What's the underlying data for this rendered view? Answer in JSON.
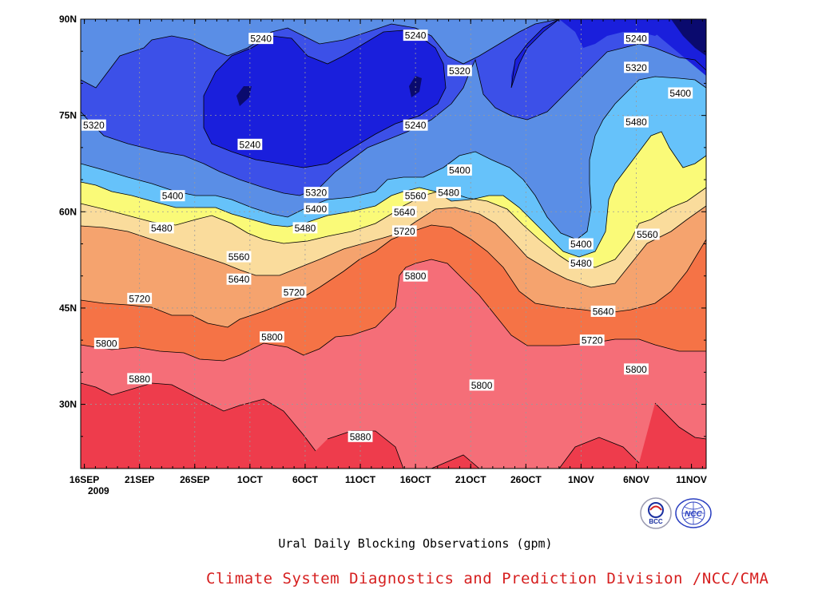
{
  "chart_data": {
    "type": "contour",
    "title": "Ural Daily Blocking Observations (gpm)",
    "variable_unit": "gpm",
    "x_tick_labels": [
      "16SEP",
      "21SEP",
      "26SEP",
      "1OCT",
      "6OCT",
      "11OCT",
      "16OCT",
      "21OCT",
      "26OCT",
      "1NOV",
      "6NOV",
      "11NOV"
    ],
    "x_year_label": "2009",
    "y_tick_labels": [
      "30N",
      "45N",
      "60N",
      "75N",
      "90N"
    ],
    "xlim": [
      "2009-09-16",
      "2009-11-11"
    ],
    "ylim": [
      20,
      90
    ],
    "grid": true,
    "contour_levels": [
      5240,
      5320,
      5400,
      5480,
      5560,
      5640,
      5720,
      5800,
      5880
    ],
    "fill_colors": [
      "#0a0a6e",
      "#1a1fdc",
      "#3c50e8",
      "#5a8ee6",
      "#66c2fa",
      "#fafa78",
      "#fadc9c",
      "#f5a36e",
      "#f57346",
      "#f56e78",
      "#ee3c4c"
    ],
    "contour_labels": [
      {
        "date": "2009-10-02",
        "lat": 87,
        "value": 5240
      },
      {
        "date": "2009-10-16",
        "lat": 87.5,
        "value": 5240
      },
      {
        "date": "2009-11-05",
        "lat": 87,
        "value": 5240
      },
      {
        "date": "2009-10-20",
        "lat": 82,
        "value": 5320
      },
      {
        "date": "2009-11-05",
        "lat": 82.5,
        "value": 5320
      },
      {
        "date": "2009-11-09",
        "lat": 78.5,
        "value": 5400
      },
      {
        "date": "2009-09-16",
        "lat": 73.5,
        "value": 5320
      },
      {
        "date": "2009-10-16",
        "lat": 73.5,
        "value": 5240
      },
      {
        "date": "2009-10-01",
        "lat": 70.5,
        "value": 5240
      },
      {
        "date": "2009-11-05",
        "lat": 74,
        "value": 5480
      },
      {
        "date": "2009-10-20",
        "lat": 66.5,
        "value": 5400
      },
      {
        "date": "2009-09-24",
        "lat": 62.5,
        "value": 5400
      },
      {
        "date": "2009-10-07",
        "lat": 63,
        "value": 5320
      },
      {
        "date": "2009-10-16",
        "lat": 62.5,
        "value": 5560
      },
      {
        "date": "2009-10-19",
        "lat": 63,
        "value": 5480
      },
      {
        "date": "2009-10-07",
        "lat": 60.5,
        "value": 5400
      },
      {
        "date": "2009-10-15",
        "lat": 60,
        "value": 5640
      },
      {
        "date": "2009-09-23",
        "lat": 57.5,
        "value": 5480
      },
      {
        "date": "2009-10-06",
        "lat": 57.5,
        "value": 5480
      },
      {
        "date": "2009-10-15",
        "lat": 57,
        "value": 5720
      },
      {
        "date": "2009-10-31",
        "lat": 55,
        "value": 5400
      },
      {
        "date": "2009-11-06",
        "lat": 56.5,
        "value": 5560
      },
      {
        "date": "2009-10-31",
        "lat": 52,
        "value": 5480
      },
      {
        "date": "2009-09-30",
        "lat": 53,
        "value": 5560
      },
      {
        "date": "2009-10-16",
        "lat": 50,
        "value": 5800
      },
      {
        "date": "2009-09-30",
        "lat": 49.5,
        "value": 5640
      },
      {
        "date": "2009-10-05",
        "lat": 47.5,
        "value": 5720
      },
      {
        "date": "2009-09-21",
        "lat": 46.5,
        "value": 5720
      },
      {
        "date": "2009-11-02",
        "lat": 44.5,
        "value": 5640
      },
      {
        "date": "2009-10-03",
        "lat": 40.5,
        "value": 5800
      },
      {
        "date": "2009-09-18",
        "lat": 39.5,
        "value": 5800
      },
      {
        "date": "2009-11-01",
        "lat": 40,
        "value": 5720
      },
      {
        "date": "2009-09-21",
        "lat": 34,
        "value": 5880
      },
      {
        "date": "2009-11-05",
        "lat": 35.5,
        "value": 5800
      },
      {
        "date": "2009-10-22",
        "lat": 33,
        "value": 5800
      },
      {
        "date": "2009-10-11",
        "lat": 25,
        "value": 5880
      }
    ]
  },
  "footer": {
    "subtitle": "Ural Daily Blocking Observations (gpm)",
    "credit": "Climate System Diagnostics and Prediction Division /NCC/CMA"
  },
  "logos": {
    "bcc_text": "BCC",
    "ncc_text": "NCC"
  }
}
